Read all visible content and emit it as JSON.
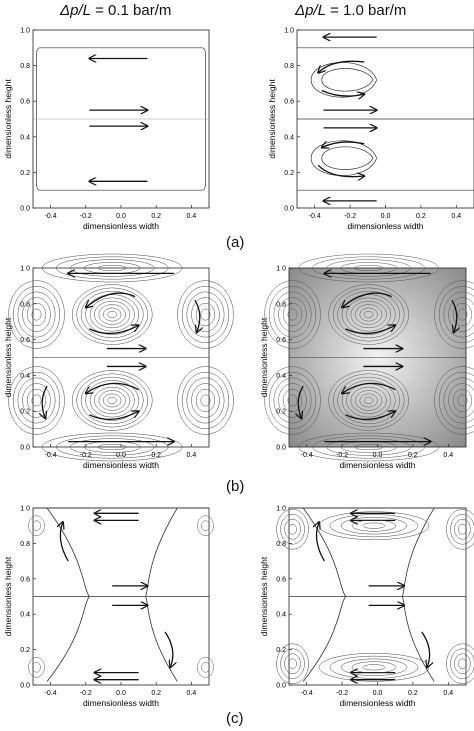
{
  "header": {
    "left_title_sym": "Δp/L",
    "left_title_val": " = 0.1 bar/m",
    "right_title_sym": "Δp/L",
    "right_title_val": " = 1.0 bar/m"
  },
  "panel_tags": {
    "a": "(a)",
    "b": "(b)",
    "c": "(c)"
  },
  "axes": {
    "xlabel": "dimensionless width",
    "ylabel": "dimensionless height",
    "xticks": [
      "-0.4",
      "-0.2",
      "0.0",
      "0.2",
      "0.4"
    ],
    "yticks": [
      "0.0",
      "0.2",
      "0.4",
      "0.6",
      "0.8",
      "1.0"
    ],
    "xlim": [
      -0.5,
      0.5
    ],
    "ylim": [
      0,
      1
    ]
  },
  "chart_data": [
    {
      "type": "scatter",
      "panel": "(a)",
      "case": "0.1 bar/m",
      "content": "streamlines with flow arrows",
      "xlim": [
        -0.5,
        0.5
      ],
      "ylim": [
        0,
        1
      ]
    },
    {
      "type": "scatter",
      "panel": "(a)",
      "case": "1.0 bar/m",
      "content": "streamlines with recirculation cells",
      "xlim": [
        -0.5,
        0.5
      ],
      "ylim": [
        0,
        1
      ]
    },
    {
      "type": "scatter",
      "panel": "(b)",
      "case": "0.1 bar/m",
      "content": "contour lines with circulation arrows",
      "xlim": [
        -0.5,
        0.5
      ],
      "ylim": [
        0,
        1
      ]
    },
    {
      "type": "scatter",
      "panel": "(b)",
      "case": "1.0 bar/m",
      "content": "dense contour lines with circulation arrows",
      "xlim": [
        -0.5,
        0.5
      ],
      "ylim": [
        0,
        1
      ]
    },
    {
      "type": "scatter",
      "panel": "(c)",
      "case": "0.1 bar/m",
      "content": "separatrix streamlines with flow arrows",
      "xlim": [
        -0.5,
        0.5
      ],
      "ylim": [
        0,
        1
      ]
    },
    {
      "type": "scatter",
      "panel": "(c)",
      "case": "1.0 bar/m",
      "content": "separatrix streamlines with corner vortices",
      "xlim": [
        -0.5,
        0.5
      ],
      "ylim": [
        0,
        1
      ]
    }
  ]
}
